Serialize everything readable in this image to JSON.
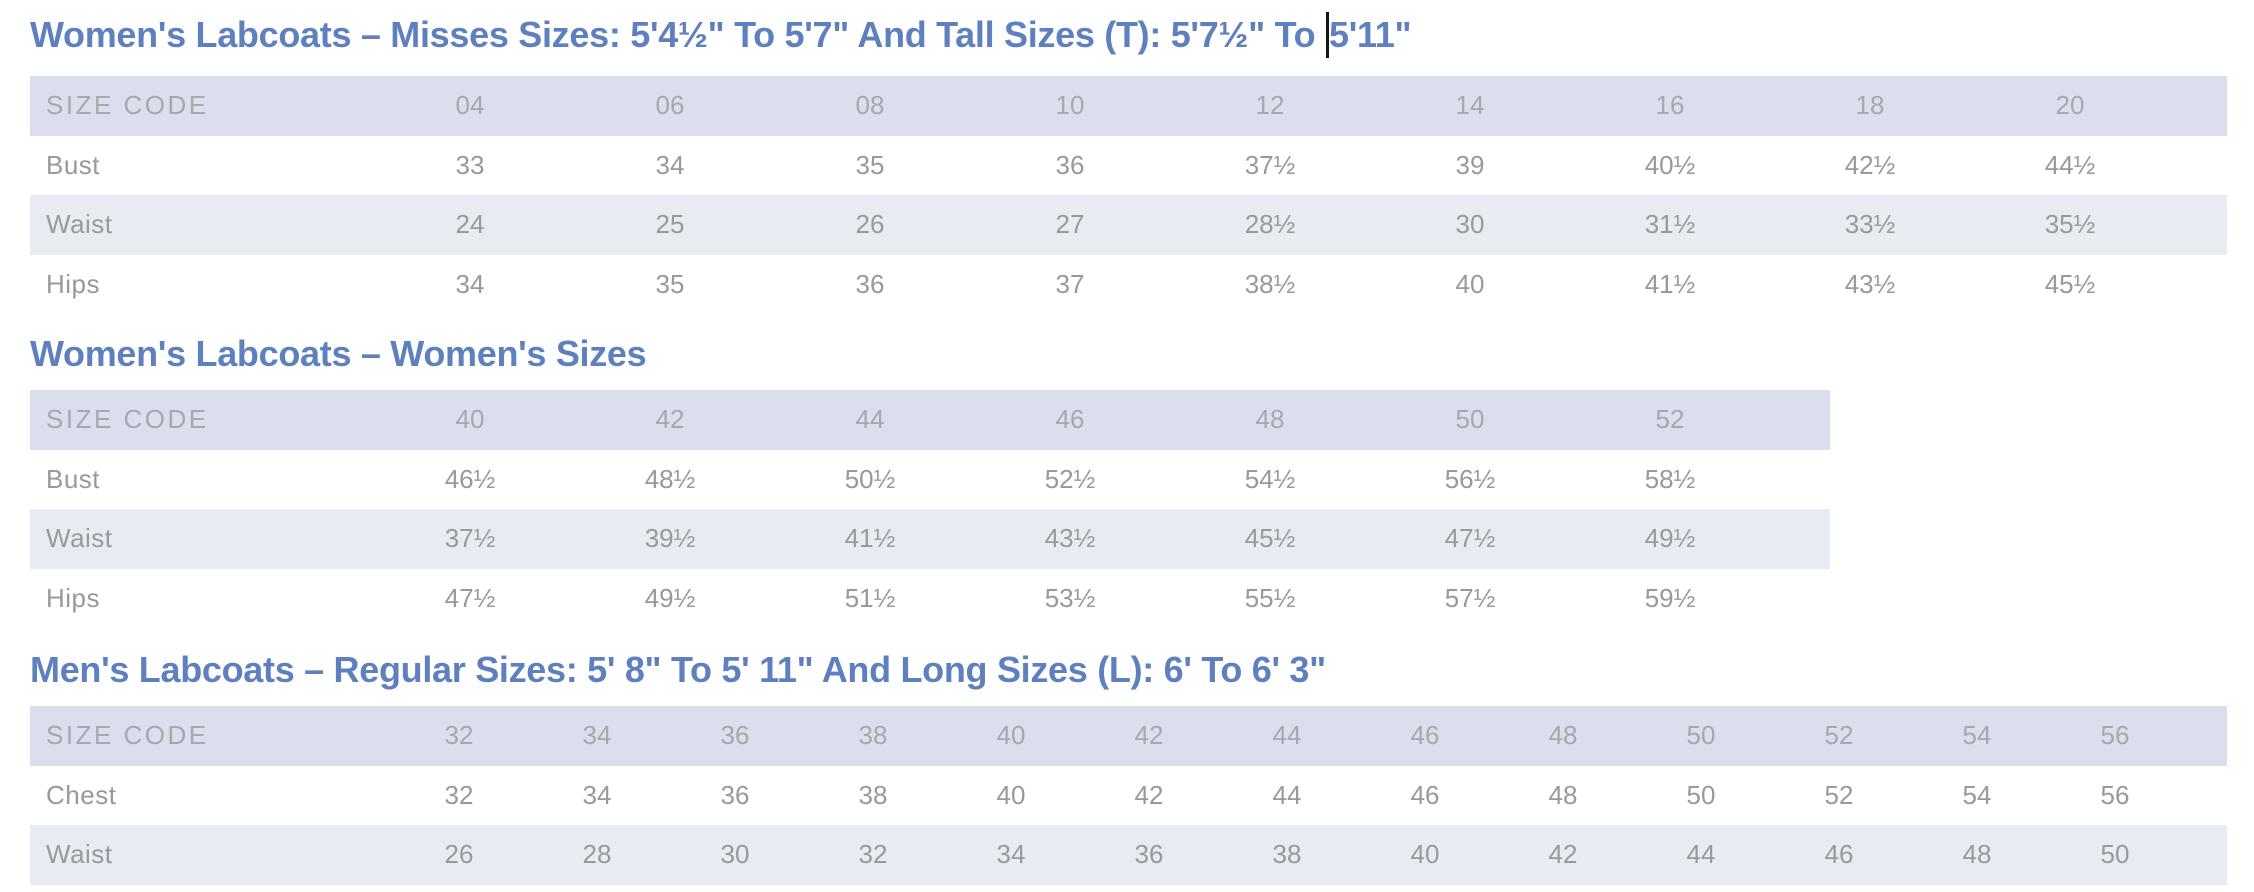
{
  "colors": {
    "title_blue": "#5e80bf",
    "header_row_bg": "#dbdfed",
    "alt_row_bg": "#e9ebf3",
    "header_text": "#a5a8ae",
    "body_text": "#96999e",
    "page_bg": "#ffffff"
  },
  "text_cursor": {
    "visible": true
  },
  "sections": [
    {
      "title": "Women's Labcoats – Misses Sizes: 5'4½\" To 5'7\" And Tall Sizes (T): 5'7½\" To 5'11\"",
      "title_before_cursor": "Women's Labcoats – Misses Sizes: 5'4½\" To 5'7\" And Tall Sizes (T): 5'7½\" To ",
      "title_after_cursor": "5'11\"",
      "table": {
        "header": [
          "SIZE CODE",
          "04",
          "06",
          "08",
          "10",
          "12",
          "14",
          "16",
          "18",
          "20"
        ],
        "rows": [
          {
            "label": "Bust",
            "values": [
              "33",
              "34",
              "35",
              "36",
              "37½",
              "39",
              "40½",
              "42½",
              "44½"
            ]
          },
          {
            "label": "Waist",
            "values": [
              "24",
              "25",
              "26",
              "27",
              "28½",
              "30",
              "31½",
              "33½",
              "35½"
            ]
          },
          {
            "label": "Hips",
            "values": [
              "34",
              "35",
              "36",
              "37",
              "38½",
              "40",
              "41½",
              "43½",
              "45½"
            ]
          }
        ]
      }
    },
    {
      "title": "Women's Labcoats – Women's Sizes",
      "table": {
        "header": [
          "SIZE CODE",
          "40",
          "42",
          "44",
          "46",
          "48",
          "50",
          "52"
        ],
        "rows": [
          {
            "label": "Bust",
            "values": [
              "46½",
              "48½",
              "50½",
              "52½",
              "54½",
              "56½",
              "58½"
            ]
          },
          {
            "label": "Waist",
            "values": [
              "37½",
              "39½",
              "41½",
              "43½",
              "45½",
              "47½",
              "49½"
            ]
          },
          {
            "label": "Hips",
            "values": [
              "47½",
              "49½",
              "51½",
              "53½",
              "55½",
              "57½",
              "59½"
            ]
          }
        ]
      }
    },
    {
      "title": "Men's Labcoats – Regular Sizes: 5' 8\" To 5' 11\" And Long Sizes (L): 6' To 6' 3\"",
      "table": {
        "header": [
          "SIZE CODE",
          "32",
          "34",
          "36",
          "38",
          "40",
          "42",
          "44",
          "46",
          "48",
          "50",
          "52",
          "54",
          "56"
        ],
        "rows": [
          {
            "label": "Chest",
            "values": [
              "32",
              "34",
              "36",
              "38",
              "40",
              "42",
              "44",
              "46",
              "48",
              "50",
              "52",
              "54",
              "56"
            ]
          },
          {
            "label": "Waist",
            "values": [
              "26",
              "28",
              "30",
              "32",
              "34",
              "36",
              "38",
              "40",
              "42",
              "44",
              "46",
              "48",
              "50"
            ]
          }
        ]
      }
    }
  ]
}
